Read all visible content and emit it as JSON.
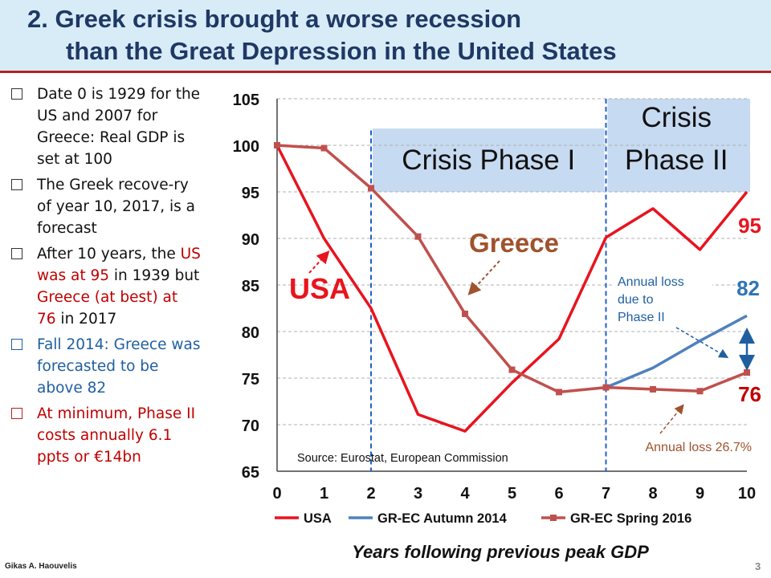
{
  "header": {
    "title_line1": "2.  Greek crisis brought a worse recession",
    "title_line2": "than the Great Depression in the United States"
  },
  "bullets": [
    {
      "color": "black",
      "parts": [
        {
          "text": "Date 0 is 1929 for the US and 2007 for Greece: Real GDP is set at 100",
          "color": "black"
        }
      ]
    },
    {
      "color": "black",
      "parts": [
        {
          "text": "The Greek recove-ry of year 10, 2017, is a forecast",
          "color": "black"
        }
      ]
    },
    {
      "color": "black",
      "parts": [
        {
          "text": "After 10 years, the ",
          "color": "black"
        },
        {
          "text": "US was at 95",
          "color": "red"
        },
        {
          "text": " in 1939  but ",
          "color": "black"
        },
        {
          "text": "Greece (at best) at 76",
          "color": "red"
        },
        {
          "text": " in 2017",
          "color": "black"
        }
      ]
    },
    {
      "color": "blue",
      "parts": [
        {
          "text": "Fall 2014: Greece was forecasted to be above 82",
          "color": "blue"
        }
      ]
    },
    {
      "color": "red",
      "parts": [
        {
          "text": "At minimum, Phase II costs annually 6.1 ppts or €14bn",
          "color": "darkred"
        }
      ]
    }
  ],
  "footer": {
    "author": "Gikas A. Haouvelis",
    "page": "3"
  },
  "chart_data": {
    "type": "line",
    "xlabel": "Years following previous peak GDP",
    "ylabel": "",
    "xlim": [
      0,
      10
    ],
    "ylim": [
      65,
      105
    ],
    "x_ticks": [
      "0",
      "1",
      "2",
      "3",
      "4",
      "5",
      "6",
      "7",
      "8",
      "9",
      "10"
    ],
    "y_ticks": [
      "65",
      "70",
      "75",
      "80",
      "85",
      "90",
      "95",
      "100",
      "105"
    ],
    "grid": "horizontal dashed",
    "legend_position": "bottom",
    "series": [
      {
        "name": "USA",
        "color": "#e8141e",
        "x": [
          0,
          1,
          2,
          3,
          4,
          5,
          6,
          7,
          8,
          9,
          10
        ],
        "values": [
          100,
          90,
          82.5,
          71.1,
          69.3,
          74.5,
          79.2,
          90.1,
          93.2,
          88.8,
          95
        ]
      },
      {
        "name": "GR-EC Autumn 2014",
        "color": "#4f81bd",
        "x": [
          7,
          8,
          9,
          10
        ],
        "values": [
          74,
          76.1,
          79,
          81.7
        ]
      },
      {
        "name": "GR-EC Spring 2016",
        "color": "#c0504d",
        "x": [
          0,
          1,
          2,
          3,
          4,
          5,
          6,
          7,
          8,
          9,
          10
        ],
        "values": [
          100,
          99.7,
          95.4,
          90.2,
          81.9,
          75.9,
          73.5,
          74,
          73.8,
          73.6,
          75.6
        ]
      }
    ],
    "phases": [
      {
        "label": "Crisis Phase I",
        "start": 2,
        "end": 7
      },
      {
        "label_line1": "Crisis",
        "label_line2": "Phase II",
        "start": 7,
        "end": 10
      }
    ],
    "annotations": {
      "usa_label": "USA",
      "greece_label": "Greece",
      "usa_end_value": "95",
      "autumn_end_value": "82",
      "spring_end_value": "76",
      "annual_loss_box": [
        "Annual loss",
        "due to",
        "Phase II"
      ],
      "annual_loss_pct": "Annual loss 26.7%",
      "source": "Source: Eurostat, European Commission"
    },
    "colors": {
      "usa": "#e8141e",
      "autumn": "#4f81bd",
      "spring": "#c0504d",
      "phase_fill": "#c6daf1",
      "greece_label": "#a0522d"
    }
  }
}
